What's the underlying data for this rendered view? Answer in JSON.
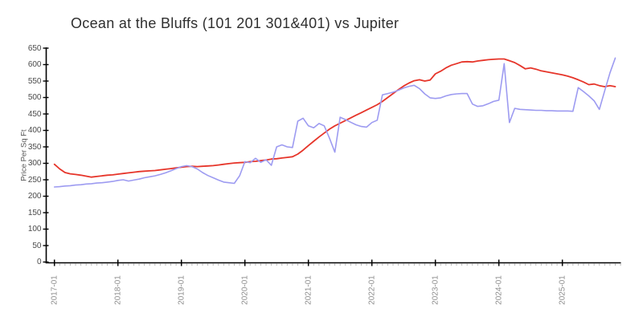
{
  "chart_data": {
    "type": "line",
    "title": "Ocean at the Bluffs (101 201 301&401) vs Jupiter",
    "ylabel": "Price Per Sq Ft",
    "grid": false,
    "legend": "none",
    "x_axis": {
      "start_month": "2017-01",
      "end_month": "2025-11",
      "major_tick_labels": [
        "2017-01",
        "2018-01",
        "2019-01",
        "2020-01",
        "2021-01",
        "2022-01",
        "2023-01",
        "2024-01",
        "2025-01"
      ],
      "minor_tick_unit": "month"
    },
    "y_axis": {
      "min": 0,
      "max": 650,
      "tick_step": 50,
      "tick_labels": [
        "0",
        "50",
        "100",
        "150",
        "200",
        "250",
        "300",
        "350",
        "400",
        "450",
        "500",
        "550",
        "600",
        "650"
      ]
    },
    "series": [
      {
        "name": "Jupiter",
        "color": "#e6352a",
        "line_style": "solid",
        "points_per_month": 1,
        "values": [
          297,
          283,
          272,
          268,
          266,
          264,
          261,
          258,
          260,
          262,
          264,
          265,
          267,
          269,
          271,
          273,
          275,
          276,
          277,
          278,
          280,
          282,
          284,
          286,
          288,
          290,
          291,
          290,
          291,
          292,
          293,
          295,
          297,
          299,
          301,
          302,
          303,
          305,
          306,
          308,
          310,
          313,
          314,
          316,
          318,
          320,
          328,
          340,
          354,
          367,
          380,
          392,
          404,
          414,
          422,
          430,
          438,
          446,
          454,
          462,
          470,
          478,
          488,
          500,
          512,
          524,
          535,
          544,
          551,
          554,
          550,
          553,
          572,
          580,
          590,
          598,
          603,
          608,
          609,
          608,
          611,
          613,
          615,
          616,
          617,
          617,
          612,
          606,
          597,
          587,
          590,
          586,
          581,
          578,
          575,
          572,
          569,
          565,
          560,
          554,
          547,
          539,
          541,
          536,
          533,
          536,
          533
        ]
      },
      {
        "name": "Ocean at the Bluffs (101 201 301&401)",
        "color": "#9d9bf1",
        "line_style": "solid",
        "points_per_month": 1,
        "values": [
          228,
          229,
          231,
          232,
          234,
          235,
          237,
          238,
          240,
          241,
          243,
          245,
          248,
          250,
          246,
          249,
          252,
          256,
          259,
          262,
          266,
          271,
          277,
          284,
          290,
          293,
          290,
          283,
          272,
          263,
          256,
          249,
          243,
          241,
          239,
          262,
          305,
          302,
          315,
          303,
          311,
          294,
          350,
          356,
          350,
          348,
          428,
          437,
          414,
          408,
          421,
          414,
          376,
          334,
          440,
          433,
          425,
          417,
          412,
          410,
          424,
          431,
          508,
          512,
          516,
          522,
          529,
          534,
          537,
          527,
          511,
          499,
          497,
          499,
          505,
          509,
          511,
          512,
          512,
          480,
          473,
          475,
          481,
          488,
          492,
          603,
          424,
          467,
          464,
          463,
          462,
          461,
          461,
          460,
          460,
          459,
          459,
          459,
          458,
          530,
          518,
          505,
          490,
          464,
          520,
          575,
          620
        ]
      }
    ],
    "axis_colors": {
      "spine": "#000000",
      "major_tick": "#000000",
      "minor_tick": "#b5b5b5",
      "y_tick_label": "#4a4a4a",
      "x_tick_label": "#8e8e8e",
      "title": "#2f2f2f"
    }
  }
}
